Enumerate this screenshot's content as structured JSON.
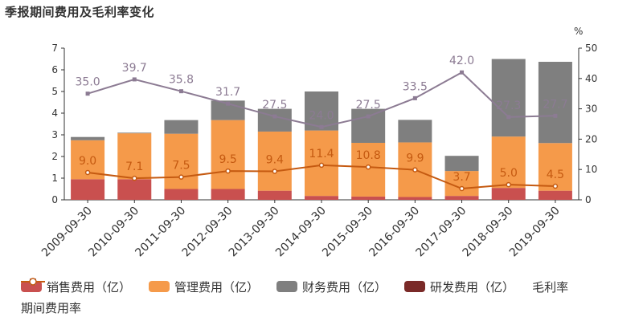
{
  "title": "季报期间费用及毛利率变化",
  "chart_data": {
    "type": "bar",
    "stacked": true,
    "categories": [
      "2009-09-30",
      "2010-09-30",
      "2011-09-30",
      "2012-09-30",
      "2013-09-30",
      "2014-09-30",
      "2015-09-30",
      "2016-09-30",
      "2017-09-30",
      "2018-09-30",
      "2019-09-30"
    ],
    "series": [
      {
        "name": "销售费用（亿）",
        "color": "#c9504f",
        "values": [
          0.95,
          0.95,
          0.5,
          0.5,
          0.42,
          0.18,
          0.15,
          0.13,
          0.18,
          0.55,
          0.42
        ]
      },
      {
        "name": "管理费用（亿）",
        "color": "#f59a4a",
        "values": [
          1.8,
          2.12,
          2.55,
          3.18,
          2.73,
          3.02,
          2.48,
          2.52,
          1.15,
          2.37,
          2.2
        ]
      },
      {
        "name": "财务费用（亿）",
        "color": "#7f7f7f",
        "values": [
          0.15,
          0.03,
          0.63,
          0.9,
          1.05,
          1.8,
          1.57,
          1.04,
          0.7,
          3.58,
          3.75
        ]
      },
      {
        "name": "研发费用（亿）",
        "color": "#7a2a28",
        "values": [
          0,
          0,
          0,
          0,
          0,
          0,
          0,
          0,
          0,
          0,
          0
        ]
      }
    ],
    "lines": [
      {
        "name": "毛利率",
        "color": "#8c7b93",
        "marker": "square",
        "values": [
          35.0,
          39.7,
          35.8,
          31.7,
          27.5,
          24.0,
          27.5,
          33.5,
          42.0,
          27.3,
          27.7
        ]
      },
      {
        "name": "期间费用率",
        "color": "#c55a11",
        "marker": "circle",
        "values": [
          9.0,
          7.1,
          7.5,
          9.5,
          9.4,
          11.4,
          10.8,
          9.9,
          3.7,
          5.0,
          4.5
        ]
      }
    ],
    "left_axis": {
      "ylim": [
        0,
        7
      ],
      "ticks": [
        0,
        1,
        2,
        3,
        4,
        5,
        6,
        7
      ]
    },
    "right_axis": {
      "unit": "%",
      "ylim": [
        0,
        50
      ],
      "ticks": [
        0,
        10,
        20,
        30,
        40,
        50
      ]
    },
    "legend_position": "bottom"
  }
}
